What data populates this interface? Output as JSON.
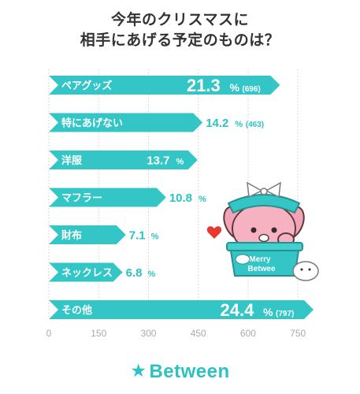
{
  "title_lines": [
    "今年のクリスマスに",
    "相手にあげる予定のものは？"
  ],
  "brand": {
    "star_icon": "star-icon",
    "name": "Between",
    "color": "#2dc2c2"
  },
  "mascot": {
    "badge_text": [
      "Merry",
      "Betwee"
    ]
  },
  "chart_data": {
    "type": "bar",
    "orientation": "horizontal",
    "title": "今年のクリスマスに 相手にあげる予定のものは？",
    "categories": [
      "ペアグッズ",
      "特にあげない",
      "洋服",
      "マフラー",
      "財布",
      "ネックレス",
      "その他"
    ],
    "values": [
      696,
      463,
      448,
      353,
      232,
      222,
      797
    ],
    "percent_labels": [
      "21.3",
      "14.2",
      "13.7",
      "10.8",
      "7.1",
      "6.8",
      "24.4"
    ],
    "count_labels": [
      "(696)",
      "(463)",
      "",
      "",
      "",
      "",
      "(797)"
    ],
    "percent_unit": "%",
    "xlim": [
      0,
      797
    ],
    "xticks": [
      0,
      150,
      300,
      450,
      600,
      750
    ],
    "bar_color": "#34c6c6",
    "label_color": "#2dc2c2",
    "grid": true,
    "legend": "none"
  }
}
